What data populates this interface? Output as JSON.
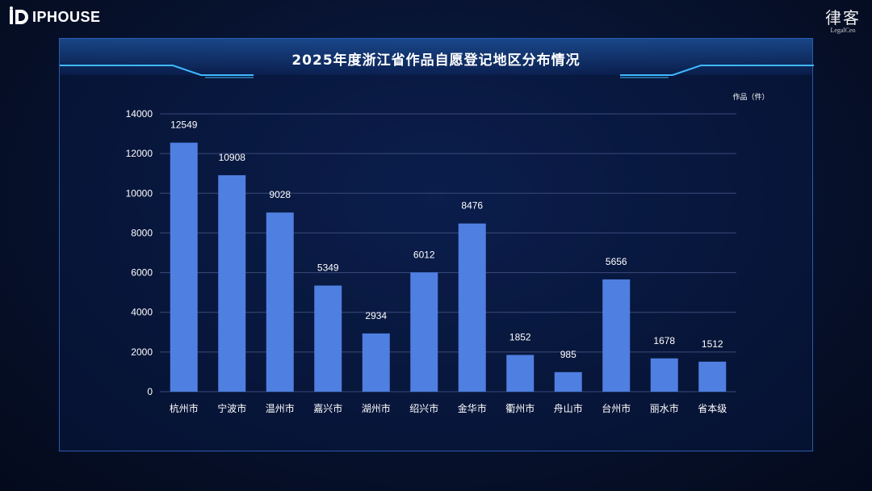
{
  "header": {
    "left_logo": "IPHOUSE",
    "right_logo_cn": "律客",
    "right_logo_en": "LegalCeo"
  },
  "chart_data": {
    "type": "bar",
    "title": "2025年度浙江省作品自愿登记地区分布情况",
    "unit_label": "作品（件）",
    "categories": [
      "杭州市",
      "宁波市",
      "温州市",
      "嘉兴市",
      "湖州市",
      "绍兴市",
      "金华市",
      "衢州市",
      "舟山市",
      "台州市",
      "丽水市",
      "省本级"
    ],
    "values": [
      12549,
      10908,
      9028,
      5349,
      2934,
      6012,
      8476,
      1852,
      985,
      5656,
      1678,
      1512
    ],
    "yticks": [
      0,
      2000,
      4000,
      6000,
      8000,
      10000,
      12000,
      14000
    ],
    "ylim": [
      0,
      14000
    ],
    "grid": true,
    "colors": {
      "bar": "#4f7fe0",
      "grid": "#3a4a7a",
      "text": "#ffffff"
    }
  }
}
